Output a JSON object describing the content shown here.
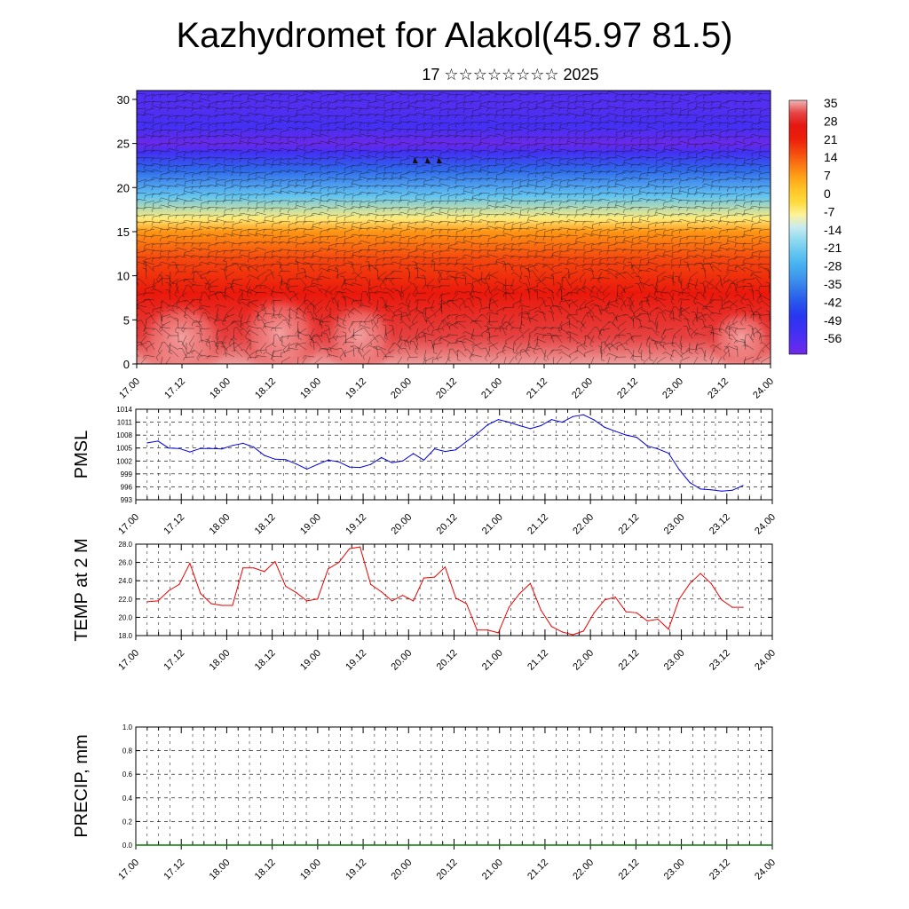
{
  "header": {
    "title": "Kazhydromet for Alakol(45.97 81.5)",
    "subtitle": "17 ☆☆☆☆☆☆☆☆ 2025"
  },
  "chart_data": [
    {
      "type": "heatmap",
      "title": "",
      "xlabel": "",
      "ylabel": "",
      "x_ticks": [
        "17.00",
        "17.12",
        "18.00",
        "18.12",
        "19.00",
        "19.12",
        "20.00",
        "20.12",
        "21.00",
        "21.12",
        "22.00",
        "22.12",
        "23.00",
        "23.12",
        "24.00"
      ],
      "y_ticks": [
        0,
        5,
        10,
        15,
        20,
        25,
        30
      ],
      "ylim": [
        0,
        31
      ],
      "colorbar": {
        "labels": [
          "35",
          "28",
          "21",
          "14",
          "7",
          "0",
          "-7",
          "-14",
          "-21",
          "-28",
          "-35",
          "-42",
          "-49",
          "-56"
        ],
        "range": [
          -63,
          35
        ]
      },
      "temperature_profile": {
        "levels": [
          0,
          3,
          8,
          12,
          15,
          16.5,
          19,
          22,
          24,
          25,
          27,
          29,
          31
        ],
        "values": [
          34,
          30,
          22,
          15,
          7,
          -8,
          -24,
          -40,
          -55,
          -62,
          -55,
          -58,
          -57
        ]
      },
      "overlay": "wind barbs",
      "colors": {
        "low": "#7a2ee6",
        "mid": "#ffee4a",
        "high": "#e8100f"
      }
    },
    {
      "type": "line",
      "ylabel": "PMSL",
      "ylim": [
        993,
        1014
      ],
      "y_ticks": [
        993,
        996,
        999,
        1002,
        1005,
        1008,
        1011,
        1014
      ],
      "x_ticks": [
        "17.00",
        "17.12",
        "18.00",
        "18.12",
        "19.00",
        "19.12",
        "20.00",
        "20.12",
        "21.00",
        "21.12",
        "22.00",
        "22.12",
        "23.00",
        "23.12",
        "24.00"
      ],
      "x_start": "17.00",
      "x_step_hours": 3,
      "series": [
        {
          "color": "#0000dd",
          "values": [
            1006.2,
            1006.6,
            1005,
            1004.9,
            1004.1,
            1004.9,
            1004.9,
            1004.8,
            1005.6,
            1006.1,
            1005.2,
            1003.3,
            1002.4,
            1002.3,
            1001.3,
            1000.1,
            1001.2,
            1002.2,
            1001.8,
            1000.6,
            1000.5,
            1001.2,
            1002.8,
            1001.6,
            1002,
            1003.7,
            1002.2,
            1004.8,
            1004.2,
            1004.6,
            1006.5,
            1008.3,
            1010.4,
            1011.6,
            1011,
            1010.2,
            1009.5,
            1010.2,
            1011.6,
            1011,
            1012.3,
            1012.7,
            1011.5,
            1009.8,
            1008.9,
            1008,
            1007.5,
            1005.5,
            1004.8,
            1003.8,
            1000,
            997,
            995.5,
            995.3,
            995,
            995.2,
            996.3
          ]
        }
      ],
      "grid": true
    },
    {
      "type": "line",
      "ylabel": "TEMP at 2 M",
      "ylim": [
        18,
        28
      ],
      "y_ticks": [
        18.0,
        20.0,
        22.0,
        24.0,
        26.0,
        28.0
      ],
      "x_ticks": [
        "17.00",
        "17.12",
        "18.00",
        "18.12",
        "19.00",
        "19.12",
        "20.00",
        "20.12",
        "21.00",
        "21.12",
        "22.00",
        "22.12",
        "23.00",
        "23.12",
        "24.00"
      ],
      "x_start": "17.00",
      "x_step_hours": 3,
      "series": [
        {
          "color": "#ee0000",
          "values": [
            21.7,
            21.8,
            22.9,
            23.6,
            25.9,
            22.6,
            21.5,
            21.3,
            21.3,
            25.4,
            25.4,
            25,
            26.1,
            23.4,
            22.7,
            21.8,
            22,
            25.3,
            26,
            27.5,
            27.7,
            23.6,
            22.8,
            21.8,
            22.4,
            21.8,
            24.3,
            24.4,
            25.5,
            22.1,
            21.5,
            18.6,
            18.6,
            18.3,
            21.1,
            22.6,
            23.7,
            20.8,
            19,
            18.4,
            18.1,
            18.5,
            20.5,
            21.9,
            22.2,
            20.6,
            20.5,
            19.6,
            19.8,
            18.7,
            22,
            23.7,
            24.8,
            23.7,
            21.9,
            21.1,
            21.1
          ]
        }
      ],
      "grid": true
    },
    {
      "type": "bar",
      "ylabel": "PRECIP, mm",
      "ylim": [
        0,
        1
      ],
      "y_ticks": [
        0.0,
        0.2,
        0.4,
        0.6,
        0.8,
        1.0
      ],
      "x_ticks": [
        "17.00",
        "17.12",
        "18.00",
        "18.12",
        "19.00",
        "19.12",
        "20.00",
        "20.12",
        "21.00",
        "21.12",
        "22.00",
        "22.12",
        "23.00",
        "23.12",
        "24.00"
      ],
      "values_all": 0,
      "grid": true
    }
  ]
}
